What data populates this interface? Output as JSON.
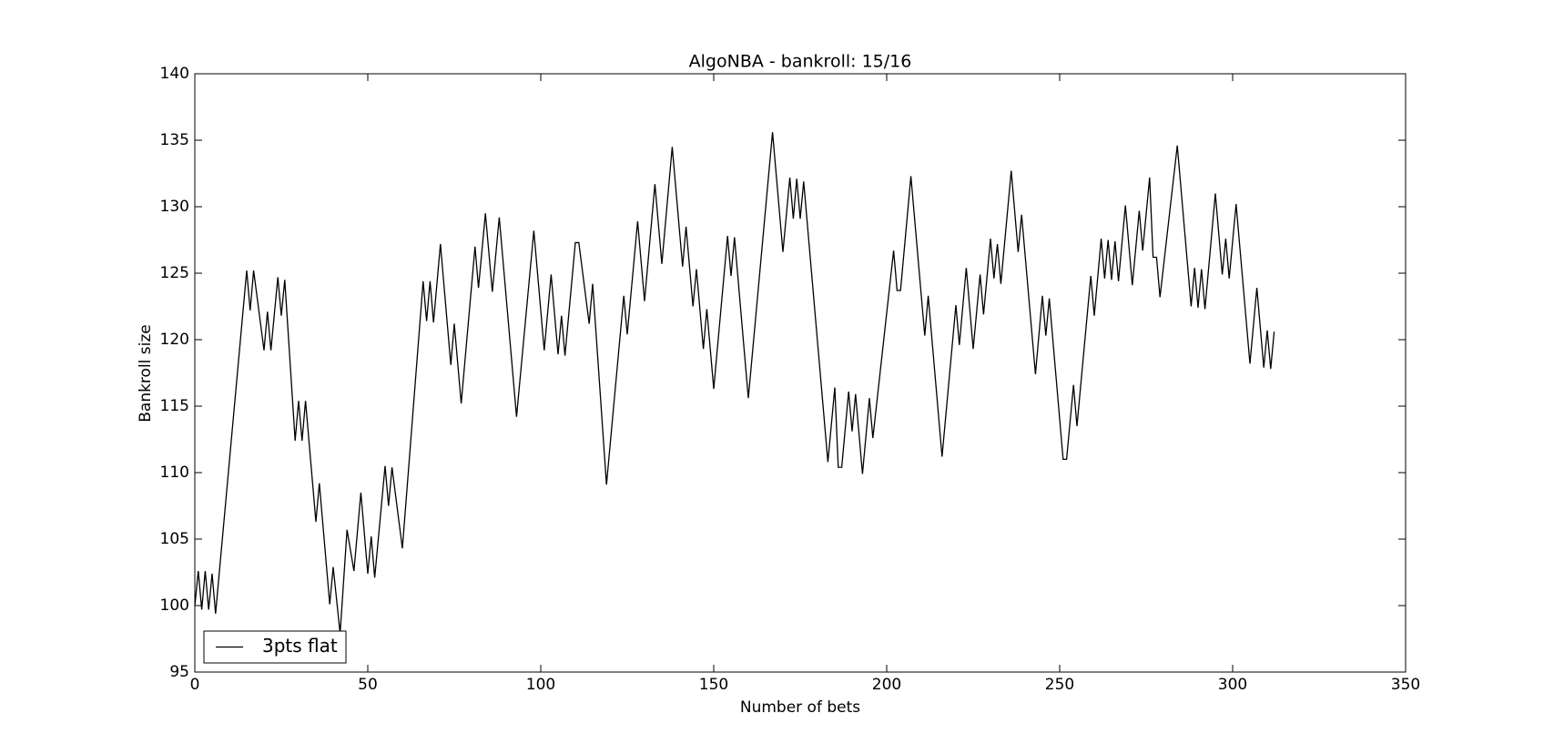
{
  "chart_data": {
    "type": "line",
    "title": "AlgoNBA - bankroll: 15/16",
    "xlabel": "Number of bets",
    "ylabel": "Bankroll size",
    "xlim": [
      0,
      350
    ],
    "xticks": [
      0,
      50,
      100,
      150,
      200,
      250,
      300,
      350
    ],
    "ylim": [
      95,
      140
    ],
    "yticks": [
      95,
      100,
      105,
      110,
      115,
      120,
      125,
      130,
      135,
      140
    ],
    "legend": "lower left",
    "x": [
      0,
      1,
      2,
      3,
      4,
      5,
      6,
      15,
      16,
      17,
      20,
      21,
      22,
      24,
      25,
      26,
      29,
      30,
      31,
      32,
      35,
      36,
      39,
      40,
      42,
      44,
      46,
      48,
      50,
      51,
      52,
      55,
      56,
      57,
      60,
      66,
      67,
      68,
      69,
      71,
      74,
      75,
      77,
      81,
      82,
      84,
      86,
      88,
      93,
      98,
      101,
      103,
      105,
      106,
      107,
      110,
      111,
      114,
      115,
      119,
      124,
      125,
      128,
      130,
      133,
      135,
      138,
      141,
      142,
      144,
      145,
      147,
      148,
      150,
      154,
      155,
      156,
      160,
      167,
      170,
      172,
      173,
      174,
      175,
      176,
      183,
      185,
      186,
      187,
      189,
      190,
      191,
      193,
      195,
      196,
      202,
      203,
      204,
      207,
      211,
      212,
      216,
      220,
      221,
      223,
      225,
      227,
      228,
      230,
      231,
      232,
      233,
      236,
      238,
      239,
      243,
      245,
      246,
      247,
      251,
      252,
      254,
      255,
      259,
      260,
      262,
      263,
      264,
      265,
      266,
      267,
      269,
      271,
      273,
      274,
      276,
      277,
      278,
      279,
      284,
      288,
      289,
      290,
      291,
      292,
      295,
      297,
      298,
      299,
      301,
      305,
      307,
      309,
      310,
      311,
      312
    ],
    "series": [
      {
        "name": "3pts flat",
        "color": "#000000",
        "values": [
          100,
          102.6,
          99.7,
          102.6,
          99.7,
          102.4,
          99.4,
          125.2,
          122.2,
          125.2,
          119.2,
          122.1,
          119.2,
          124.7,
          121.8,
          124.5,
          112.4,
          115.4,
          112.4,
          115.4,
          106.3,
          109.2,
          100.1,
          102.9,
          97.9,
          105.7,
          102.6,
          108.5,
          102.4,
          105.2,
          102.1,
          110.5,
          107.5,
          110.4,
          104.3,
          124.4,
          121.4,
          124.4,
          121.3,
          127.2,
          118.1,
          121.2,
          115.2,
          127,
          123.9,
          129.5,
          123.6,
          129.2,
          114.2,
          128.2,
          119.2,
          124.9,
          118.9,
          121.8,
          118.8,
          127.3,
          127.3,
          121.2,
          124.2,
          109.1,
          123.3,
          120.4,
          128.9,
          122.9,
          131.7,
          125.7,
          134.5,
          125.5,
          128.5,
          122.5,
          125.3,
          119.3,
          122.3,
          116.3,
          127.8,
          124.8,
          127.7,
          115.6,
          135.6,
          126.6,
          132.2,
          129.1,
          132.1,
          129.1,
          131.9,
          110.8,
          116.4,
          110.4,
          110.4,
          116.1,
          113.1,
          115.9,
          109.9,
          115.6,
          112.6,
          126.7,
          123.7,
          123.7,
          132.3,
          120.3,
          123.3,
          111.2,
          122.6,
          119.6,
          125.4,
          119.3,
          124.9,
          121.9,
          127.6,
          124.6,
          127.2,
          124.2,
          132.7,
          126.6,
          129.4,
          117.4,
          123.3,
          120.3,
          123.1,
          111,
          111,
          116.6,
          113.5,
          124.8,
          121.8,
          127.6,
          124.6,
          127.5,
          124.5,
          127.4,
          124.4,
          130.1,
          124.1,
          129.7,
          126.7,
          132.2,
          126.2,
          126.2,
          123.2,
          134.6,
          122.5,
          125.4,
          122.4,
          125.3,
          122.3,
          131,
          124.9,
          127.6,
          124.6,
          130.2,
          118.2,
          123.9,
          117.9,
          120.7,
          117.8,
          120.6
        ]
      }
    ]
  }
}
